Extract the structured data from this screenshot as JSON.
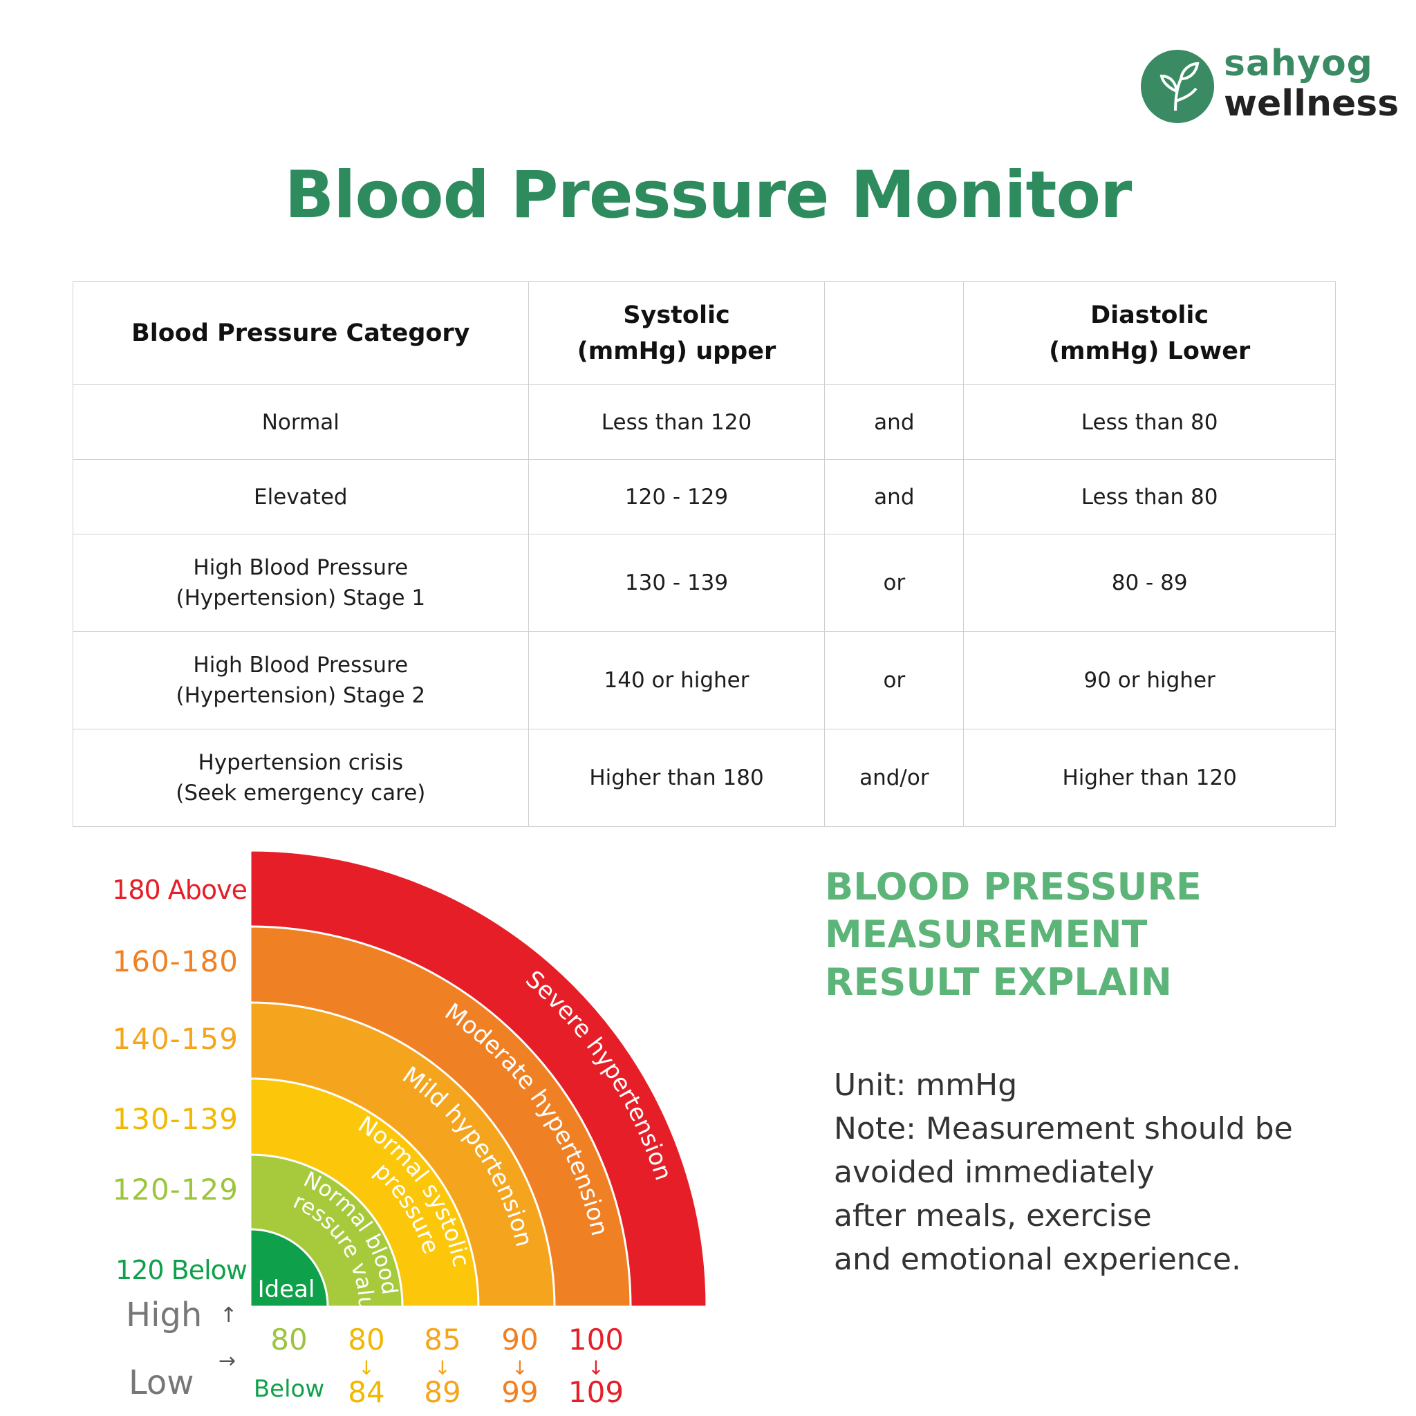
{
  "brand": {
    "line1": "sahyog",
    "line2": "wellness",
    "color": "#3a8b63"
  },
  "title": "Blood Pressure Monitor",
  "table": {
    "headers": {
      "category": "Blood Pressure Category",
      "systolic": [
        "Systolic",
        "(mmHg) upper"
      ],
      "connector": "",
      "diastolic": [
        "Diastolic",
        "(mmHg) Lower"
      ]
    },
    "rows": [
      {
        "category": [
          "Normal"
        ],
        "systolic": "Less than 120",
        "connector": "and",
        "diastolic": "Less than 80"
      },
      {
        "category": [
          "Elevated"
        ],
        "systolic": "120 - 129",
        "connector": "and",
        "diastolic": "Less than 80"
      },
      {
        "category": [
          "High Blood Pressure",
          "(Hypertension) Stage 1"
        ],
        "systolic": "130 - 139",
        "connector": "or",
        "diastolic": "80 - 89"
      },
      {
        "category": [
          "High Blood Pressure",
          "(Hypertension) Stage 2"
        ],
        "systolic": "140 or higher",
        "connector": "or",
        "diastolic": "90 or higher"
      },
      {
        "category": [
          "Hypertension crisis",
          "(Seek emergency care)"
        ],
        "systolic": "Higher than 180",
        "connector": "and/or",
        "diastolic": "Higher than 120"
      }
    ]
  },
  "chart": {
    "bands": [
      {
        "label": "Severe hypertension",
        "systolic": "180 Above",
        "diastolic_high": "100",
        "diastolic_low": "109",
        "color": "#e61e27",
        "label_color": "#e61e27"
      },
      {
        "label": "Moderate hypertension",
        "systolic": "160-180",
        "diastolic_high": "90",
        "diastolic_low": "99",
        "color": "#f08024",
        "label_color": "#f08024"
      },
      {
        "label": "Mild hypertension",
        "systolic": "140-159",
        "diastolic_high": "85",
        "diastolic_low": "89",
        "color": "#f5a51d",
        "label_color": "#f5a51d"
      },
      {
        "label": "Normal systolic pressure",
        "systolic": "130-139",
        "diastolic_high": "80",
        "diastolic_low": "84",
        "color": "#fcc70b",
        "label_color": "#f0b800"
      },
      {
        "label": "Normal blood pressure value",
        "systolic": "120-129",
        "diastolic_high": "80",
        "diastolic_low": "Below",
        "color": "#a7ca3c",
        "label_color": "#9cc43d"
      },
      {
        "label": "Ideal",
        "systolic": "120 Below",
        "color": "#0ea04a",
        "label_color": "#0ea04a"
      }
    ],
    "high_label": "High",
    "low_label": "Low",
    "high_arrow": "↑",
    "low_arrow": "→",
    "down_arrow": "↓"
  },
  "explain": {
    "title": [
      "BLOOD PRESSURE",
      "MEASUREMENT",
      "RESULT EXPLAIN"
    ],
    "body": [
      "Unit: mmHg",
      "Note: Measurement should be",
      "avoided immediately",
      "after meals, exercise",
      "and emotional experience."
    ]
  }
}
